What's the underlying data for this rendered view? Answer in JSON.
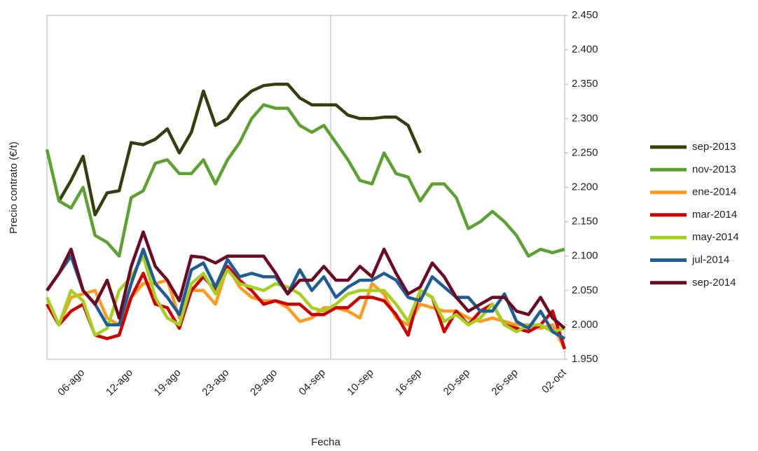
{
  "chart_data": {
    "type": "line",
    "x_label": "Fecha",
    "y_label": "Precio contrato (€/t)",
    "categories": [
      null,
      null,
      null,
      "06-ago",
      null,
      null,
      null,
      "12-ago",
      null,
      null,
      null,
      "19-ago",
      null,
      null,
      null,
      "23-ago",
      null,
      null,
      null,
      "29-ago",
      null,
      null,
      null,
      "04-sep",
      null,
      null,
      null,
      "10-sep",
      null,
      null,
      null,
      "16-sep",
      null,
      null,
      null,
      "20-sep",
      null,
      null,
      null,
      "26-sep",
      null,
      null,
      null,
      "02-oct"
    ],
    "ylim": [
      1950,
      2450
    ],
    "yticks": [
      {
        "value": 1950,
        "label": "1.950"
      },
      {
        "value": 2000,
        "label": "2.000"
      },
      {
        "value": 2050,
        "label": "2.050"
      },
      {
        "value": 2100,
        "label": "2.100"
      },
      {
        "value": 2150,
        "label": "2.150"
      },
      {
        "value": 2200,
        "label": "2.200"
      },
      {
        "value": 2250,
        "label": "2.250"
      },
      {
        "value": 2300,
        "label": "2.300"
      },
      {
        "value": 2350,
        "label": "2.350"
      },
      {
        "value": 2400,
        "label": "2.400"
      },
      {
        "value": 2450,
        "label": "2.450"
      }
    ],
    "grid": false,
    "legend": "right",
    "series": [
      {
        "name": "sep-2013",
        "color": "#333f0e",
        "values": [
          null,
          2180,
          2210,
          2245,
          2160,
          2192,
          2195,
          2265,
          2262,
          2270,
          2285,
          2250,
          2280,
          2340,
          2290,
          2300,
          2325,
          2340,
          2348,
          2350,
          2350,
          2330,
          2320,
          2320,
          2320,
          2305,
          2300,
          2300,
          2302,
          2302,
          2290,
          2250,
          null,
          null,
          null,
          null,
          null,
          null,
          null,
          null,
          null,
          null,
          null,
          null
        ]
      },
      {
        "name": "nov-2013",
        "color": "#5da130",
        "values": [
          2255,
          2180,
          2170,
          2200,
          2130,
          2120,
          2100,
          2185,
          2195,
          2235,
          2240,
          2220,
          2220,
          2240,
          2205,
          2240,
          2265,
          2300,
          2320,
          2315,
          2315,
          2290,
          2280,
          2290,
          2265,
          2240,
          2210,
          2205,
          2250,
          2220,
          2215,
          2180,
          2205,
          2205,
          2185,
          2140,
          2150,
          2165,
          2150,
          2130,
          2100,
          2110,
          2105,
          2110
        ]
      },
      {
        "name": "ene-2014",
        "color": "#ff9a1f",
        "values": [
          2030,
          2000,
          2040,
          2045,
          2050,
          2010,
          2000,
          2040,
          2060,
          2060,
          2065,
          2010,
          2050,
          2050,
          2030,
          2085,
          2055,
          2040,
          2035,
          2035,
          2025,
          2005,
          2010,
          2025,
          2025,
          2020,
          2010,
          2060,
          2045,
          2010,
          2000,
          2030,
          2025,
          2020,
          2020,
          2010,
          2005,
          2010,
          2005,
          2000,
          2000,
          1995,
          2000,
          1965
        ]
      },
      {
        "name": "mar-2014",
        "color": "#d00000",
        "values": [
          2030,
          2000,
          2020,
          2030,
          1985,
          1980,
          1985,
          2040,
          2075,
          2030,
          2025,
          1995,
          2050,
          2070,
          2050,
          2085,
          2065,
          2050,
          2030,
          2035,
          2030,
          2030,
          2015,
          2015,
          2025,
          2025,
          2040,
          2040,
          2035,
          2015,
          1985,
          2050,
          2040,
          1990,
          2020,
          2000,
          2020,
          2030,
          2000,
          1995,
          1990,
          2000,
          2020,
          1965
        ]
      },
      {
        "name": "may-2014",
        "color": "#a6cf1e",
        "values": [
          2040,
          2000,
          2050,
          2035,
          1985,
          1995,
          2050,
          2070,
          2100,
          2040,
          2010,
          2000,
          2060,
          2075,
          2045,
          2080,
          2060,
          2055,
          2050,
          2060,
          2055,
          2045,
          2025,
          2020,
          2030,
          2045,
          2050,
          2050,
          2050,
          2030,
          2005,
          2050,
          2040,
          2005,
          2015,
          2000,
          2010,
          2030,
          2000,
          1990,
          2000,
          2000,
          1990,
          1995
        ]
      },
      {
        "name": "jul-2014",
        "color": "#1e5d96",
        "values": [
          2050,
          2075,
          2100,
          2050,
          2030,
          2000,
          2000,
          2060,
          2110,
          2060,
          2040,
          2015,
          2080,
          2090,
          2055,
          2095,
          2070,
          2075,
          2070,
          2070,
          2045,
          2080,
          2050,
          2070,
          2040,
          2055,
          2065,
          2065,
          2075,
          2065,
          2040,
          2035,
          2070,
          2055,
          2040,
          2040,
          2020,
          2020,
          2045,
          2005,
          1995,
          2020,
          1990,
          1980
        ]
      },
      {
        "name": "sep-2014",
        "color": "#6b0a22",
        "values": [
          2050,
          2075,
          2110,
          2050,
          2030,
          2065,
          2010,
          2085,
          2135,
          2085,
          2065,
          2035,
          2100,
          2098,
          2090,
          2100,
          2100,
          2100,
          2100,
          2075,
          2045,
          2065,
          2065,
          2085,
          2065,
          2065,
          2085,
          2070,
          2110,
          2075,
          2045,
          2055,
          2090,
          2070,
          2040,
          2020,
          2030,
          2040,
          2040,
          2020,
          2015,
          2040,
          2010,
          1995
        ]
      }
    ]
  }
}
